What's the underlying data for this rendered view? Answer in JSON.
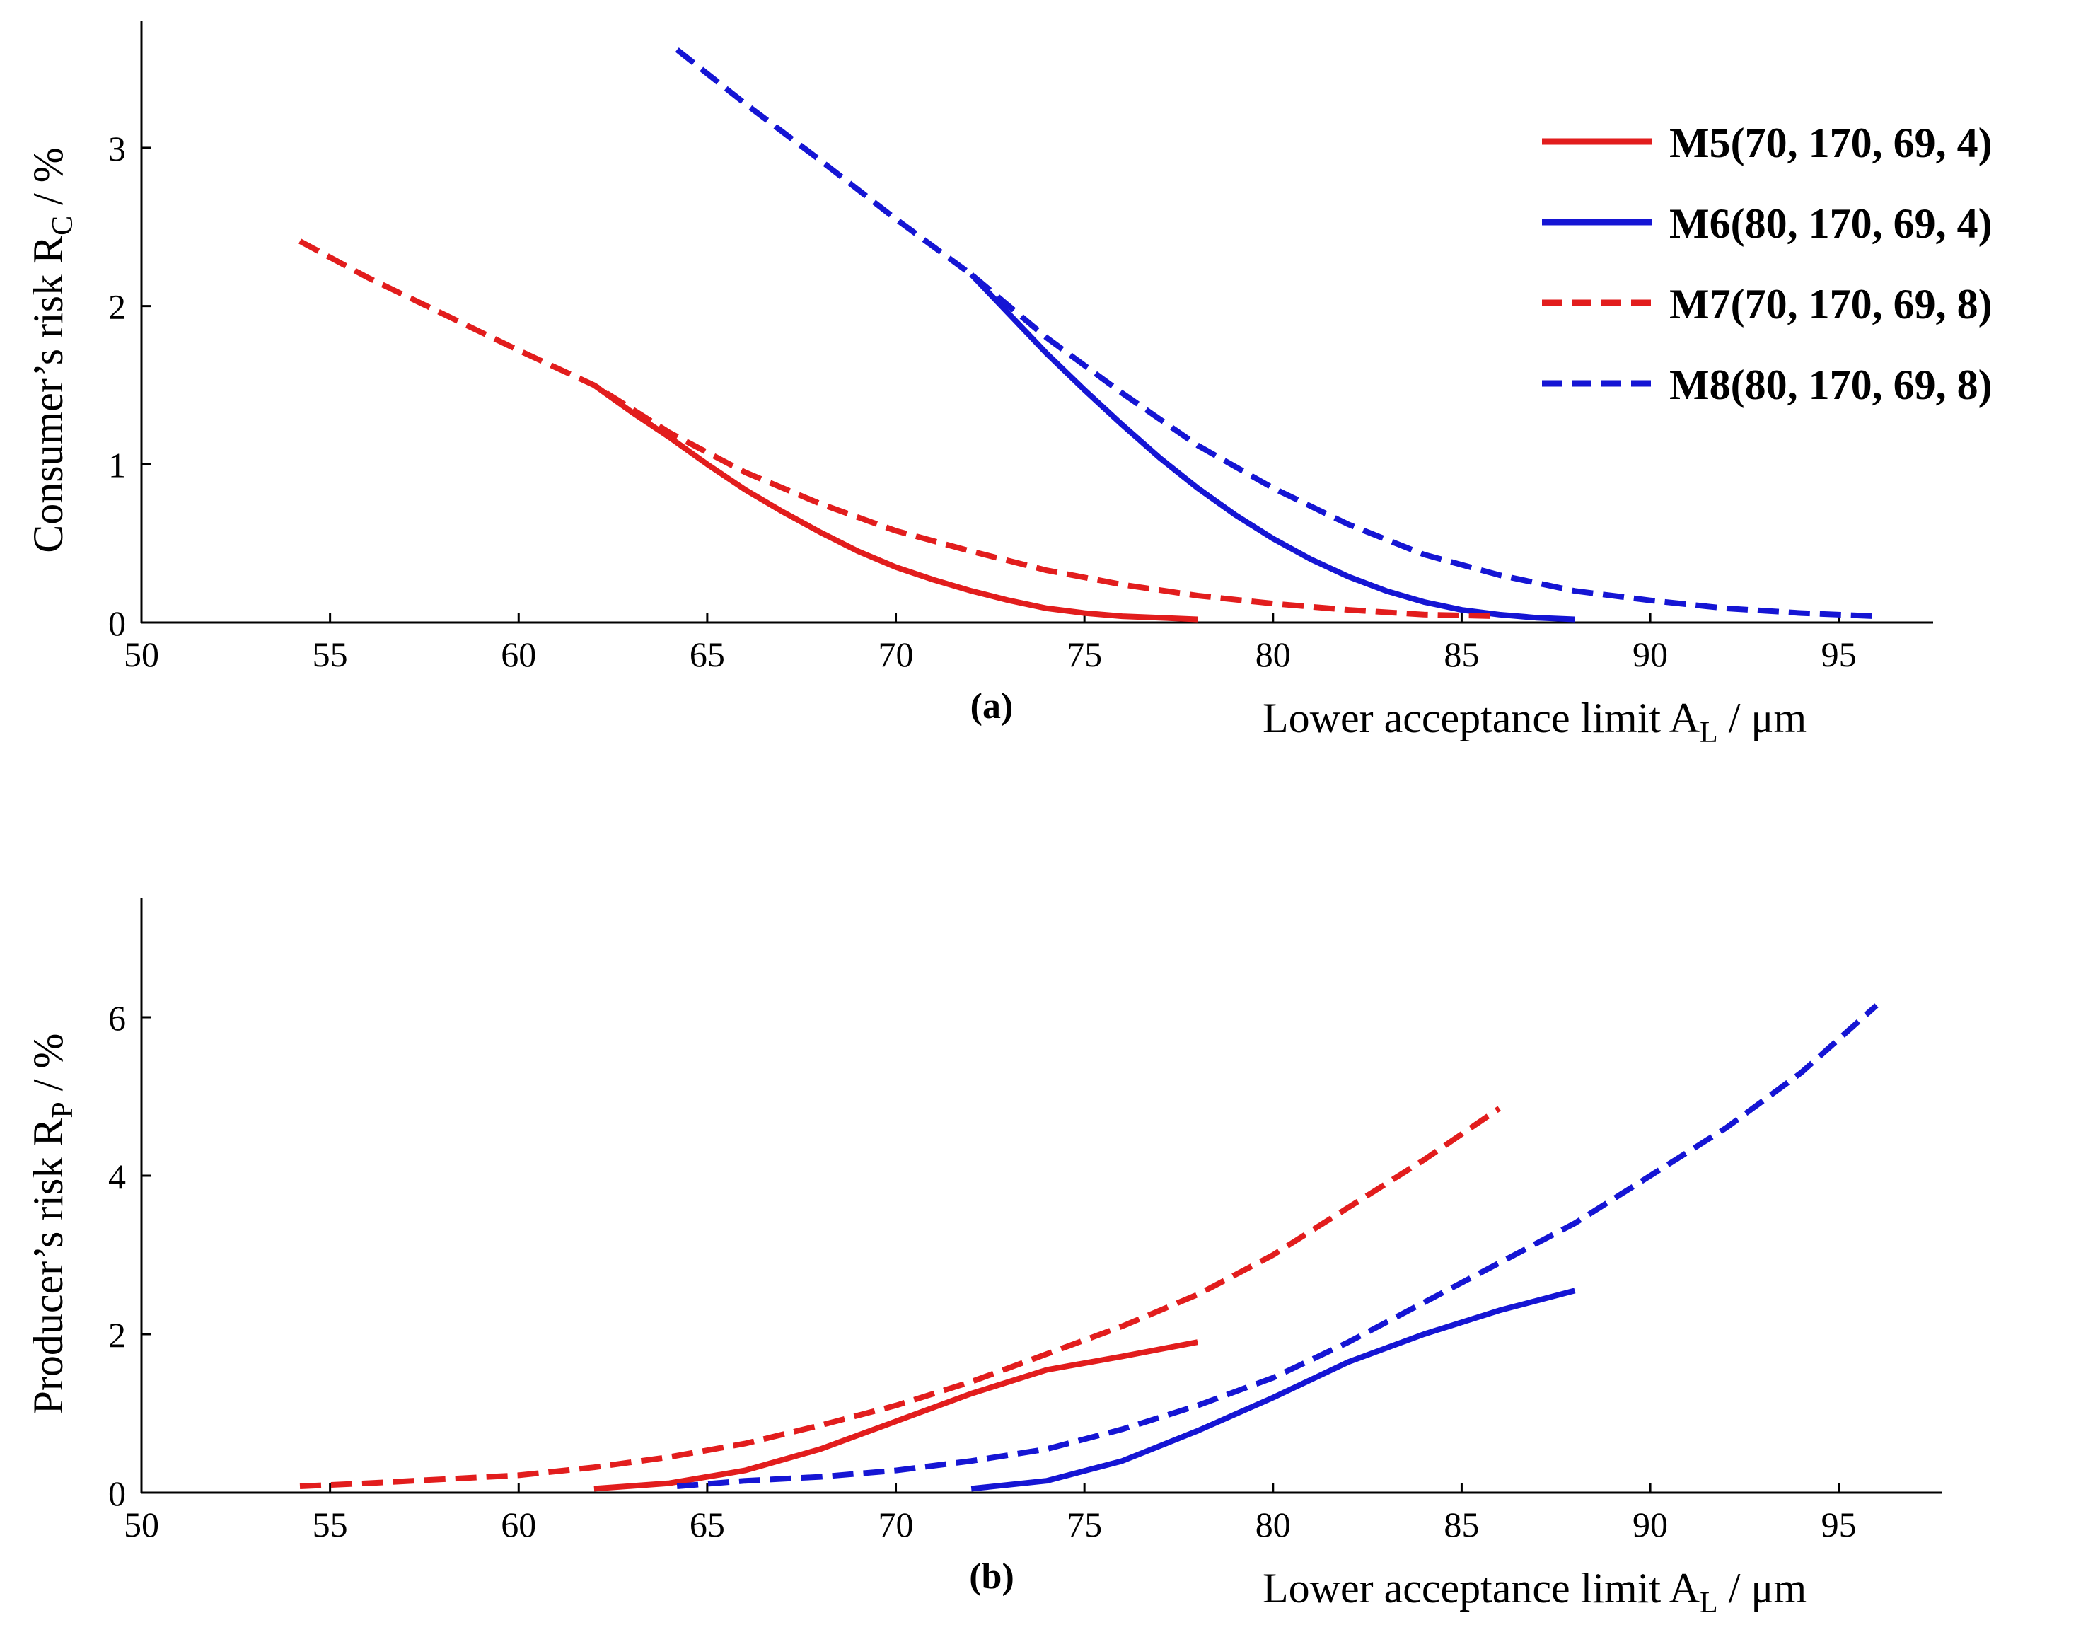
{
  "chart_data": [
    {
      "type": "line",
      "panel_label": "(a)",
      "ylabel_main": "Consumer’s  risk R",
      "ylabel_sub": "C",
      "ylabel_tail": " / %",
      "xlabel_main": "Lower acceptance limit A",
      "xlabel_sub": "L",
      "xlabel_tail": " / μm",
      "xlim": [
        50,
        97.5
      ],
      "ylim": [
        0,
        3.8
      ],
      "xticks": [
        50,
        55,
        60,
        65,
        70,
        75,
        80,
        85,
        90,
        95
      ],
      "yticks": [
        0,
        1,
        2,
        3
      ],
      "series": [
        {
          "name": "M5(70, 170, 69, 4)",
          "color": "#e21d1d",
          "dashed": false,
          "x": [
            62,
            63,
            64,
            65,
            66,
            67,
            68,
            69,
            70,
            71,
            72,
            73,
            74,
            75,
            76,
            77,
            78
          ],
          "y": [
            1.5,
            1.33,
            1.17,
            1.0,
            0.84,
            0.7,
            0.57,
            0.45,
            0.35,
            0.27,
            0.2,
            0.14,
            0.09,
            0.06,
            0.04,
            0.03,
            0.02
          ]
        },
        {
          "name": "M6(80, 170, 69, 4)",
          "color": "#1515d4",
          "dashed": false,
          "x": [
            72,
            73,
            74,
            75,
            76,
            77,
            78,
            79,
            80,
            81,
            82,
            83,
            84,
            85,
            86,
            87,
            88
          ],
          "y": [
            2.2,
            1.95,
            1.7,
            1.47,
            1.25,
            1.04,
            0.85,
            0.68,
            0.53,
            0.4,
            0.29,
            0.2,
            0.13,
            0.08,
            0.05,
            0.03,
            0.02
          ]
        },
        {
          "name": "M7(70, 170, 69, 8)",
          "color": "#e21d1d",
          "dashed": true,
          "x": [
            54.2,
            56,
            58,
            60,
            62,
            64,
            66,
            68,
            70,
            72,
            74,
            76,
            78,
            80,
            82,
            84,
            86
          ],
          "y": [
            2.41,
            2.18,
            1.95,
            1.72,
            1.5,
            1.2,
            0.95,
            0.75,
            0.58,
            0.45,
            0.33,
            0.24,
            0.17,
            0.12,
            0.08,
            0.05,
            0.04
          ]
        },
        {
          "name": "M8(80, 170, 69, 8)",
          "color": "#1515d4",
          "dashed": true,
          "x": [
            64.2,
            66,
            68,
            70,
            72,
            74,
            76,
            78,
            80,
            82,
            84,
            86,
            88,
            90,
            92,
            94,
            96
          ],
          "y": [
            3.62,
            3.28,
            2.92,
            2.55,
            2.2,
            1.8,
            1.45,
            1.12,
            0.85,
            0.62,
            0.43,
            0.3,
            0.2,
            0.14,
            0.09,
            0.06,
            0.04
          ]
        }
      ]
    },
    {
      "type": "line",
      "panel_label": "(b)",
      "ylabel_main": "Producer’s risk R",
      "ylabel_sub": "P",
      "ylabel_tail": " / %",
      "xlabel_main": "Lower acceptance limit A",
      "xlabel_sub": "L",
      "xlabel_tail": " / μm",
      "xlim": [
        50,
        97.5
      ],
      "ylim": [
        0,
        7.5
      ],
      "xticks": [
        50,
        55,
        60,
        65,
        70,
        75,
        80,
        85,
        90,
        95
      ],
      "yticks": [
        0,
        2,
        4,
        6
      ],
      "series": [
        {
          "name": "M5(70, 170, 69, 4)",
          "color": "#e21d1d",
          "dashed": false,
          "x": [
            62,
            64,
            66,
            68,
            70,
            72,
            74,
            76,
            78
          ],
          "y": [
            0.05,
            0.12,
            0.28,
            0.55,
            0.9,
            1.25,
            1.55,
            1.72,
            1.9
          ]
        },
        {
          "name": "M6(80, 170, 69, 4)",
          "color": "#1515d4",
          "dashed": false,
          "x": [
            72,
            74,
            76,
            78,
            80,
            82,
            84,
            86,
            88
          ],
          "y": [
            0.05,
            0.15,
            0.4,
            0.78,
            1.2,
            1.65,
            2.0,
            2.3,
            2.55
          ]
        },
        {
          "name": "M7(70, 170, 69, 8)",
          "color": "#e21d1d",
          "dashed": true,
          "x": [
            54.2,
            56,
            58,
            60,
            62,
            64,
            66,
            68,
            70,
            72,
            74,
            76,
            78,
            80,
            82,
            84,
            86
          ],
          "y": [
            0.08,
            0.12,
            0.17,
            0.22,
            0.32,
            0.45,
            0.62,
            0.85,
            1.1,
            1.4,
            1.75,
            2.1,
            2.5,
            3.0,
            3.6,
            4.2,
            4.85
          ]
        },
        {
          "name": "M8(80, 170, 69, 8)",
          "color": "#1515d4",
          "dashed": true,
          "x": [
            64.2,
            66,
            68,
            70,
            72,
            74,
            76,
            78,
            80,
            82,
            84,
            86,
            88,
            90,
            92,
            94,
            96
          ],
          "y": [
            0.08,
            0.15,
            0.2,
            0.28,
            0.4,
            0.55,
            0.8,
            1.1,
            1.45,
            1.9,
            2.4,
            2.9,
            3.4,
            4.0,
            4.6,
            5.3,
            6.15
          ]
        }
      ]
    }
  ],
  "legend": [
    {
      "label": "M5(70, 170, 69, 4)",
      "color": "#e21d1d",
      "dashed": false
    },
    {
      "label": "M6(80, 170, 69, 4)",
      "color": "#1515d4",
      "dashed": false
    },
    {
      "label": "M7(70, 170, 69, 8)",
      "color": "#e21d1d",
      "dashed": true
    },
    {
      "label": "M8(80, 170, 69, 8)",
      "color": "#1515d4",
      "dashed": true
    }
  ]
}
